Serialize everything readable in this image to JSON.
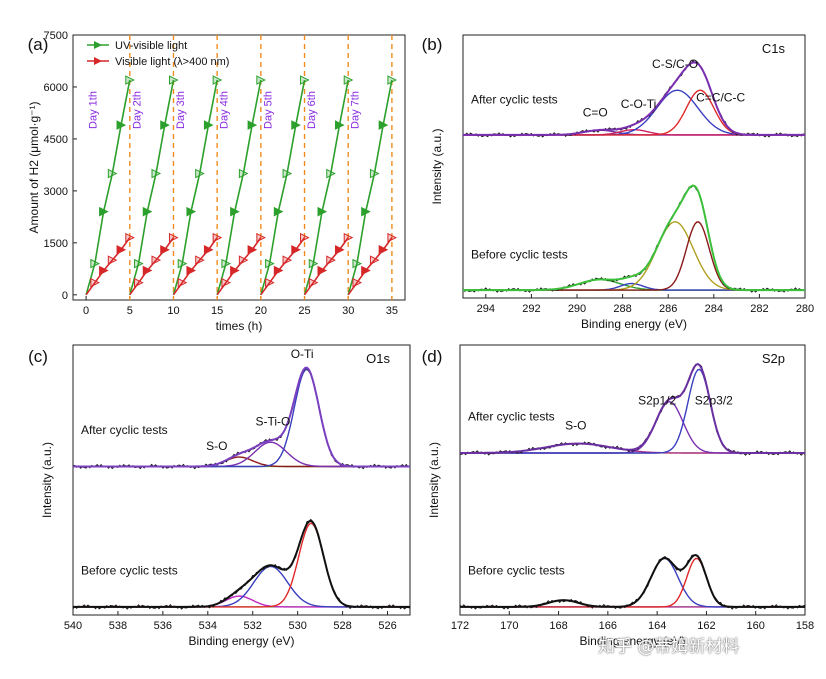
{
  "watermark": "知乎 @蒂姆新材料",
  "chart_data": [
    {
      "panel": "(a)",
      "type": "line",
      "xlabel": "times (h)",
      "ylabel": "Amount of H2 (μmol·g⁻¹)",
      "xlim": [
        -1.5,
        36.5
      ],
      "ylim": [
        -150,
        7500
      ],
      "xticks": [
        0,
        5,
        10,
        15,
        20,
        25,
        30,
        35
      ],
      "yticks": [
        0,
        1500,
        3000,
        4500,
        6000,
        7500
      ],
      "cycle_hours": 5,
      "day_labels": [
        "Day 1th",
        "Day 2th",
        "Day 3th",
        "Day 4th",
        "Day 5th",
        "Day 6th",
        "Day 7th"
      ],
      "legend": "top-left",
      "series": [
        {
          "name": "UV-visible light",
          "color": "#2ca02c",
          "cycle_x": [
            0,
            1,
            2,
            3,
            4,
            5
          ],
          "cycle_y": [
            0,
            900,
            2400,
            3500,
            4900,
            6200
          ]
        },
        {
          "name": "Visible light (λ>400 nm)",
          "color": "#d62728",
          "cycle_x": [
            0,
            1,
            2,
            3,
            4,
            5
          ],
          "cycle_y": [
            0,
            350,
            700,
            1000,
            1300,
            1650
          ]
        }
      ]
    },
    {
      "panel": "(b)",
      "type": "line",
      "element": "C1s",
      "xlabel": "Binding energy (eV)",
      "ylabel": "Intensity (a.u.)",
      "xlim": [
        295,
        280
      ],
      "xticks": [
        294,
        292,
        290,
        288,
        286,
        284,
        282,
        280
      ],
      "traces": [
        {
          "name": "After cyclic tests",
          "offset": 0.62,
          "baseline_color": "#c026c0",
          "peaks": [
            {
              "center": 289.0,
              "height": 0.018,
              "width": 0.7
            },
            {
              "center": 287.5,
              "height": 0.02,
              "width": 0.6
            },
            {
              "center": 285.6,
              "height": 0.17,
              "width": 0.9
            },
            {
              "center": 284.6,
              "height": 0.17,
              "width": 0.6
            }
          ],
          "peak_colors": [
            "#6a3fa0",
            "#d02060",
            "#3a3fbf",
            "#e0282a"
          ],
          "envelope_color": "#7a2fb0",
          "annotations": [
            {
              "text": "C=O",
              "x": 289.2
            },
            {
              "text": "C-O-Ti",
              "x": 287.3
            },
            {
              "text": "C-S/C-O",
              "x": 285.7
            },
            {
              "text": "C=C/C-C",
              "x": 283.7
            }
          ]
        },
        {
          "name": "Before cyclic tests",
          "offset": 0.03,
          "baseline_color": "#2ca02c",
          "peaks": [
            {
              "center": 289.0,
              "height": 0.04,
              "width": 0.9
            },
            {
              "center": 287.6,
              "height": 0.025,
              "width": 0.5
            },
            {
              "center": 285.7,
              "height": 0.26,
              "width": 0.8
            },
            {
              "center": 284.7,
              "height": 0.26,
              "width": 0.5
            }
          ],
          "peak_colors": [
            "#2ca02c",
            "#3a3fbf",
            "#b0a020",
            "#8b1a1a"
          ],
          "envelope_color": "#3cc03c",
          "annotations": []
        }
      ]
    },
    {
      "panel": "(c)",
      "type": "line",
      "element": "O1s",
      "xlabel": "Binding energy (eV)",
      "ylabel": "Intensity (a.u.)",
      "xlim": [
        540,
        525
      ],
      "xticks": [
        540,
        538,
        536,
        534,
        532,
        530,
        528,
        526
      ],
      "traces": [
        {
          "name": "After cyclic tests",
          "offset": 0.55,
          "baseline_color": "#6aa02c",
          "peaks": [
            {
              "center": 532.6,
              "height": 0.035,
              "width": 0.6
            },
            {
              "center": 531.2,
              "height": 0.09,
              "width": 0.7
            },
            {
              "center": 529.6,
              "height": 0.36,
              "width": 0.55
            }
          ],
          "peak_colors": [
            "#8b1a1a",
            "#7a2fb0",
            "#3a3fbf"
          ],
          "envelope_color": "#7a40c0",
          "annotations": [
            {
              "text": "S-O",
              "x": 533.6
            },
            {
              "text": "S-Ti-O",
              "x": 531.1
            },
            {
              "text": "O-Ti",
              "x": 529.8
            }
          ]
        },
        {
          "name": "Before cyclic tests",
          "offset": 0.03,
          "baseline_color": "#2ca02c",
          "peaks": [
            {
              "center": 532.6,
              "height": 0.04,
              "width": 0.6
            },
            {
              "center": 531.2,
              "height": 0.15,
              "width": 0.75
            },
            {
              "center": 529.4,
              "height": 0.31,
              "width": 0.55
            }
          ],
          "peak_colors": [
            "#c026c0",
            "#3a3fbf",
            "#e0282a"
          ],
          "envelope_color": "#111111",
          "annotations": []
        }
      ]
    },
    {
      "panel": "(d)",
      "type": "line",
      "element": "S2p",
      "xlabel": "Binding energy (eV)",
      "ylabel": "Intensity (a.u.)",
      "xlim": [
        172,
        158
      ],
      "xticks": [
        172,
        170,
        168,
        166,
        164,
        162,
        160,
        158
      ],
      "traces": [
        {
          "name": "After cyclic tests",
          "offset": 0.6,
          "baseline_color": "#808020",
          "peaks": [
            {
              "center": 167.2,
              "height": 0.035,
              "width": 1.3
            },
            {
              "center": 163.5,
              "height": 0.19,
              "width": 0.55
            },
            {
              "center": 162.3,
              "height": 0.31,
              "width": 0.45
            }
          ],
          "peak_colors": [
            "#b0308a",
            "#7a2fb0",
            "#3a3fbf"
          ],
          "envelope_color": "#6a2fa0",
          "annotations": [
            {
              "text": "S-O",
              "x": 167.3
            },
            {
              "text": "S2p1/2",
              "x": 164.0
            },
            {
              "text": "S2p3/2",
              "x": 161.7
            }
          ]
        },
        {
          "name": "Before cyclic tests",
          "offset": 0.03,
          "baseline_color": "#2ca0a0",
          "peaks": [
            {
              "center": 167.8,
              "height": 0.025,
              "width": 0.6
            },
            {
              "center": 163.7,
              "height": 0.18,
              "width": 0.55
            },
            {
              "center": 162.4,
              "height": 0.18,
              "width": 0.4
            }
          ],
          "peak_colors": [
            "#b0308a",
            "#3a3fbf",
            "#e0282a"
          ],
          "envelope_color": "#111111",
          "annotations": []
        }
      ]
    }
  ]
}
